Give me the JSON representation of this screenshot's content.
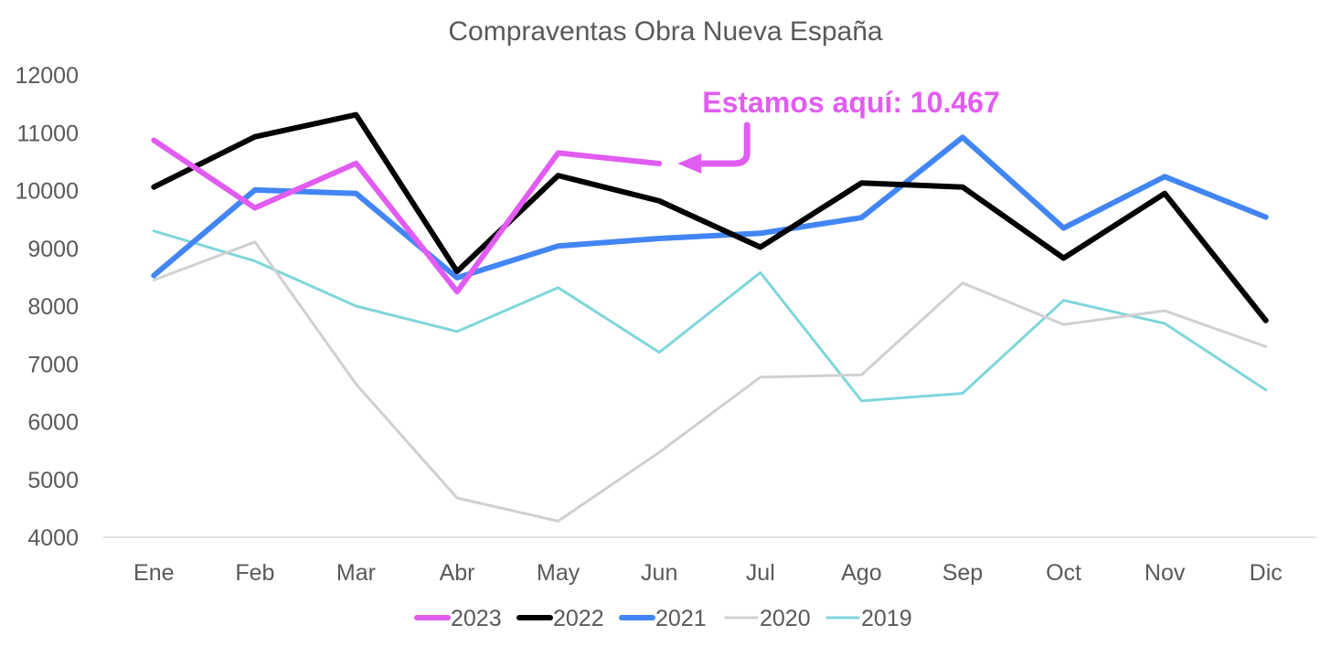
{
  "chart_data": {
    "type": "line",
    "title": "Compraventas Obra Nueva España",
    "xlabel": "",
    "ylabel": "",
    "categories": [
      "Ene",
      "Feb",
      "Mar",
      "Abr",
      "May",
      "Jun",
      "Jul",
      "Ago",
      "Sep",
      "Oct",
      "Nov",
      "Dic"
    ],
    "ylim": [
      4000,
      12000
    ],
    "yticks": [
      12000,
      11000,
      10000,
      9000,
      8000,
      7000,
      6000,
      5000,
      4000
    ],
    "grid": false,
    "legend_position": "bottom",
    "series": [
      {
        "name": "2023",
        "color": "#E15CF2",
        "weight": "heavy",
        "values": [
          10870,
          9700,
          10470,
          8250,
          10650,
          10467,
          null,
          null,
          null,
          null,
          null,
          null
        ]
      },
      {
        "name": "2022",
        "color": "#000000",
        "weight": "heavy",
        "values": [
          10060,
          10930,
          11310,
          8600,
          10260,
          9820,
          9020,
          10130,
          10060,
          8830,
          9950,
          7750
        ]
      },
      {
        "name": "2021",
        "color": "#4285F4",
        "weight": "heavy",
        "values": [
          8530,
          10010,
          9950,
          8490,
          9040,
          9170,
          9260,
          9530,
          10920,
          9350,
          10240,
          9540
        ]
      },
      {
        "name": "2020",
        "color": "#D0D0D0",
        "weight": "light",
        "values": [
          8450,
          9110,
          6650,
          4680,
          4280,
          5470,
          6770,
          6810,
          8400,
          7680,
          7920,
          7300
        ]
      },
      {
        "name": "2019",
        "color": "#7FD6DA",
        "weight": "light",
        "values": [
          9300,
          8780,
          8000,
          7560,
          8320,
          7200,
          8580,
          6360,
          6490,
          8100,
          7700,
          6550
        ]
      }
    ],
    "annotation": {
      "text": "Estamos aquí: 10.467",
      "color": "#E15CF2",
      "target_category": "Jun",
      "target_value": 10467
    }
  }
}
